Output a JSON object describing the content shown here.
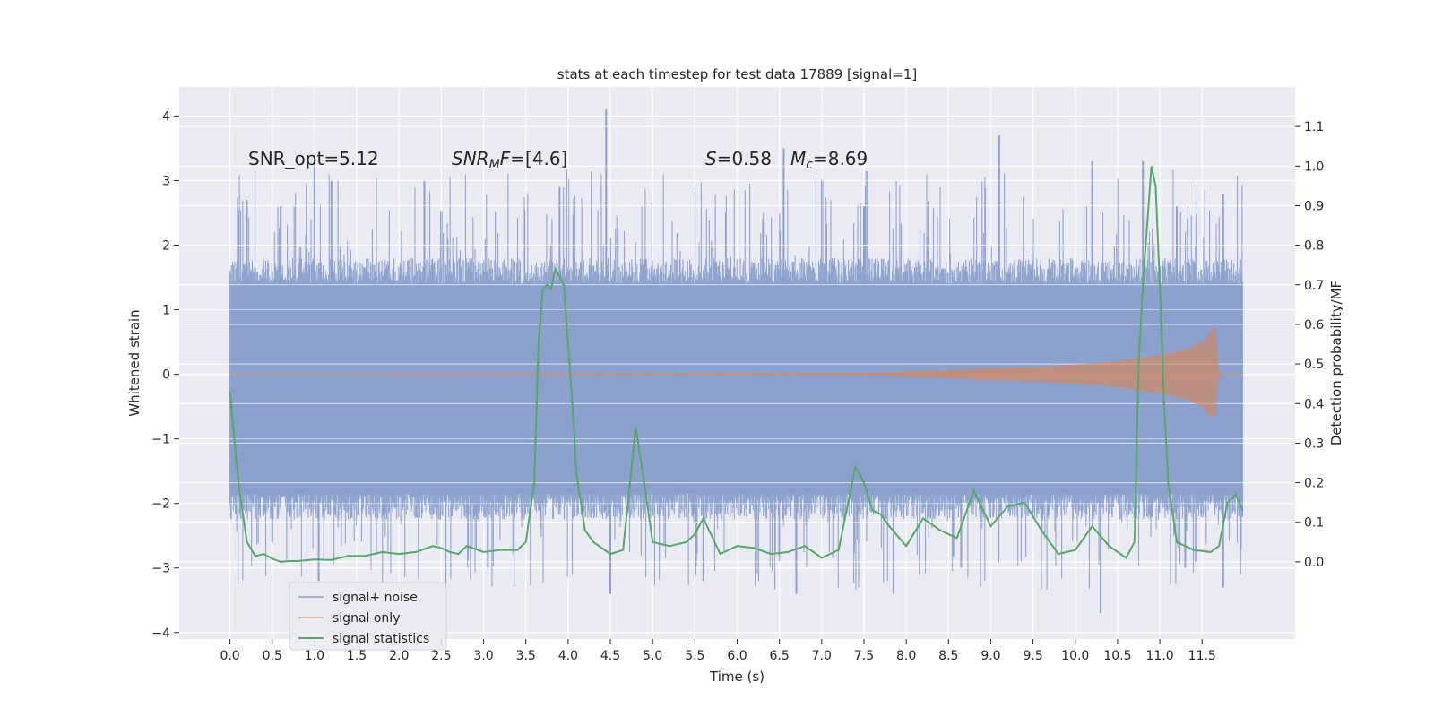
{
  "chart_data": {
    "type": "line",
    "title": "stats at each timestep for test data 17889 [signal=1]",
    "xlabel": "Time (s)",
    "ylabel": "Whitened strain",
    "ylabel_right": "Detection probability/MF",
    "xlim": [
      -0.6,
      12.6
    ],
    "ylim": [
      -4.1,
      4.45
    ],
    "ylim_right": [
      -0.195,
      1.2
    ],
    "x_ticks": [
      0.0,
      0.5,
      1.0,
      1.5,
      2.0,
      2.5,
      3.0,
      3.5,
      4.0,
      4.5,
      5.0,
      5.5,
      6.0,
      6.5,
      7.0,
      7.5,
      8.0,
      8.5,
      9.0,
      9.5,
      10.0,
      10.5,
      11.0,
      11.5
    ],
    "x_tick_labels": [
      "0.0",
      "0.5",
      "1.0",
      "1.5",
      "2.0",
      "2.5",
      "3.0",
      "3.5",
      "4.0",
      "4.5",
      "5.0",
      "5.5",
      "6.0",
      "6.5",
      "7.0",
      "7.5",
      "8.0",
      "8.5",
      "9.0",
      "9.5",
      "10.0",
      "10.5",
      "11.0",
      "11.5"
    ],
    "y_ticks": [
      4,
      3,
      2,
      1,
      0,
      -1,
      -2,
      -3,
      -4
    ],
    "y_tick_labels": [
      "4",
      "3",
      "2",
      "1",
      "0",
      "−1",
      "−2",
      "−3",
      "−4"
    ],
    "y_right_ticks": [
      1.1,
      1.0,
      0.9,
      0.8,
      0.7,
      0.6,
      0.5,
      0.4,
      0.3,
      0.2,
      0.1,
      0.0
    ],
    "y_right_tick_labels": [
      "1.1",
      "1.0",
      "0.9",
      "0.8",
      "0.7",
      "0.6",
      "0.5",
      "0.4",
      "0.3",
      "0.2",
      "0.1",
      "0.0"
    ],
    "grid": true,
    "legend_position": "lower-left",
    "annotations": [
      {
        "text": "SNR_opt=5.12"
      },
      {
        "text": "SNR_MF=[4.6]"
      },
      {
        "text": "S=0.58"
      },
      {
        "text": "M_c=8.69"
      }
    ],
    "series": [
      {
        "name": "signal+ noise",
        "axis": "left",
        "color": "#8ba0cc",
        "band_min": -1.85,
        "band_max": 1.4,
        "upper_envelope_peaks": [
          [
            0.2,
            2.7
          ],
          [
            0.6,
            2.6
          ],
          [
            1.0,
            3.4
          ],
          [
            1.2,
            3.0
          ],
          [
            2.3,
            3.0
          ],
          [
            3.9,
            2.9
          ],
          [
            4.45,
            4.1
          ],
          [
            6.55,
            3.5
          ],
          [
            7.5,
            2.6
          ],
          [
            9.1,
            3.7
          ],
          [
            10.2,
            3.3
          ],
          [
            10.8,
            3.3
          ],
          [
            11.2,
            2.6
          ],
          [
            11.75,
            2.8
          ]
        ],
        "lower_envelope_peaks": [
          [
            0.5,
            -2.6
          ],
          [
            1.05,
            -3.2
          ],
          [
            2.55,
            -3.3
          ],
          [
            3.05,
            -3.0
          ],
          [
            4.5,
            -3.4
          ],
          [
            5.6,
            -3.2
          ],
          [
            6.7,
            -3.4
          ],
          [
            7.85,
            -3.4
          ],
          [
            8.65,
            -3.0
          ],
          [
            10.3,
            -3.7
          ],
          [
            11.3,
            -3.0
          ],
          [
            11.75,
            -3.3
          ]
        ]
      },
      {
        "name": "signal only",
        "axis": "left",
        "color": "#dd8452",
        "x": [
          0.0,
          7.5,
          8.5,
          9.0,
          9.5,
          10.0,
          10.5,
          11.0,
          11.3,
          11.5,
          11.6,
          11.65,
          11.7,
          11.75,
          12.0
        ],
        "amplitude": [
          0.0,
          0.02,
          0.06,
          0.09,
          0.11,
          0.15,
          0.2,
          0.3,
          0.38,
          0.5,
          0.65,
          0.8,
          0.03,
          0.0,
          0.0
        ]
      },
      {
        "name": "signal statistics",
        "axis": "right",
        "color": "#55a868",
        "x": [
          0.0,
          0.1,
          0.2,
          0.3,
          0.4,
          0.5,
          0.6,
          0.7,
          0.8,
          1.0,
          1.2,
          1.4,
          1.6,
          1.8,
          2.0,
          2.2,
          2.4,
          2.5,
          2.6,
          2.7,
          2.8,
          3.0,
          3.2,
          3.4,
          3.5,
          3.6,
          3.65,
          3.7,
          3.75,
          3.8,
          3.85,
          3.95,
          4.05,
          4.1,
          4.2,
          4.3,
          4.5,
          4.65,
          4.8,
          4.9,
          5.0,
          5.2,
          5.4,
          5.5,
          5.6,
          5.8,
          6.0,
          6.2,
          6.4,
          6.6,
          6.8,
          7.0,
          7.2,
          7.4,
          7.5,
          7.6,
          7.7,
          7.8,
          8.0,
          8.2,
          8.4,
          8.6,
          8.8,
          9.0,
          9.2,
          9.4,
          9.6,
          9.8,
          10.0,
          10.2,
          10.4,
          10.6,
          10.7,
          10.75,
          10.8,
          10.85,
          10.9,
          10.95,
          11.0,
          11.05,
          11.1,
          11.2,
          11.4,
          11.6,
          11.7,
          11.8,
          11.9,
          11.98
        ],
        "values": [
          0.43,
          0.2,
          0.05,
          0.015,
          0.02,
          0.008,
          0.0,
          0.002,
          0.002,
          0.006,
          0.005,
          0.015,
          0.015,
          0.025,
          0.02,
          0.025,
          0.04,
          0.035,
          0.025,
          0.02,
          0.04,
          0.025,
          0.03,
          0.03,
          0.05,
          0.2,
          0.55,
          0.69,
          0.7,
          0.69,
          0.74,
          0.7,
          0.4,
          0.22,
          0.08,
          0.05,
          0.02,
          0.03,
          0.34,
          0.2,
          0.05,
          0.04,
          0.05,
          0.07,
          0.11,
          0.02,
          0.04,
          0.035,
          0.02,
          0.025,
          0.04,
          0.01,
          0.03,
          0.24,
          0.2,
          0.13,
          0.12,
          0.09,
          0.04,
          0.11,
          0.08,
          0.06,
          0.18,
          0.09,
          0.14,
          0.15,
          0.08,
          0.02,
          0.03,
          0.09,
          0.04,
          0.01,
          0.05,
          0.5,
          0.7,
          0.85,
          1.0,
          0.95,
          0.7,
          0.4,
          0.2,
          0.05,
          0.03,
          0.025,
          0.04,
          0.15,
          0.17,
          0.13
        ]
      }
    ]
  }
}
